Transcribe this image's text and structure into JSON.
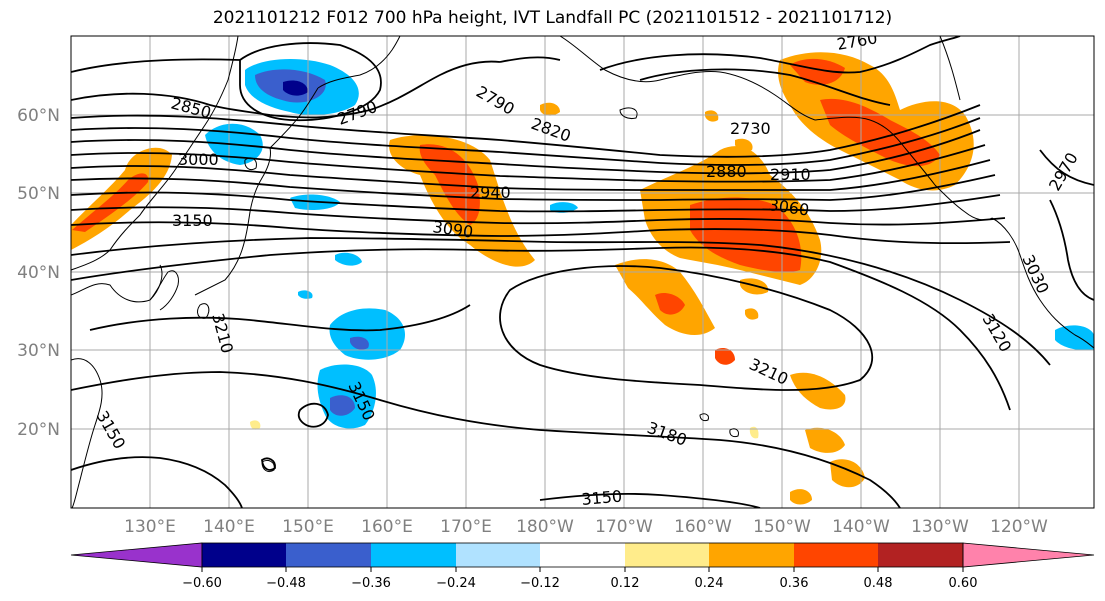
{
  "title": "2021101212 F012 700 hPa height, IVT Landfall PC (2021101512 - 2021101712)",
  "lat_labels": [
    "60°N",
    "50°N",
    "40°N",
    "30°N",
    "20°N"
  ],
  "lon_labels": [
    "130°E",
    "140°E",
    "150°E",
    "160°E",
    "170°E",
    "180°W",
    "170°W",
    "160°W",
    "150°W",
    "140°W",
    "130°W",
    "120°W"
  ],
  "contour_labels": [
    "2850",
    "2790",
    "2790",
    "2820",
    "2760",
    "2730",
    "3000",
    "2940",
    "2880",
    "2910",
    "2970",
    "3150",
    "3090",
    "3060",
    "3030",
    "3210",
    "3120",
    "3210",
    "3150",
    "3150",
    "3180",
    "3150"
  ],
  "colorbar": {
    "ticks": [
      "−0.60",
      "−0.48",
      "−0.36",
      "−0.24",
      "−0.12",
      "0.12",
      "0.24",
      "0.36",
      "0.48",
      "0.60"
    ],
    "colors": [
      "#9932cc",
      "#00008b",
      "#3a5fcd",
      "#00bfff",
      "#b0e2ff",
      "#ffffff",
      "#ffec8b",
      "#ffa500",
      "#ff4500",
      "#b22222",
      "#ff82ab"
    ]
  },
  "colors": {
    "positive_light": "#ffec8b",
    "positive_mid": "#ffa500",
    "positive_strong": "#ff4500",
    "negative_light": "#b0e2ff",
    "negative_mid": "#00bfff",
    "negative_strong": "#3a5fcd",
    "negative_max": "#00008b"
  }
}
